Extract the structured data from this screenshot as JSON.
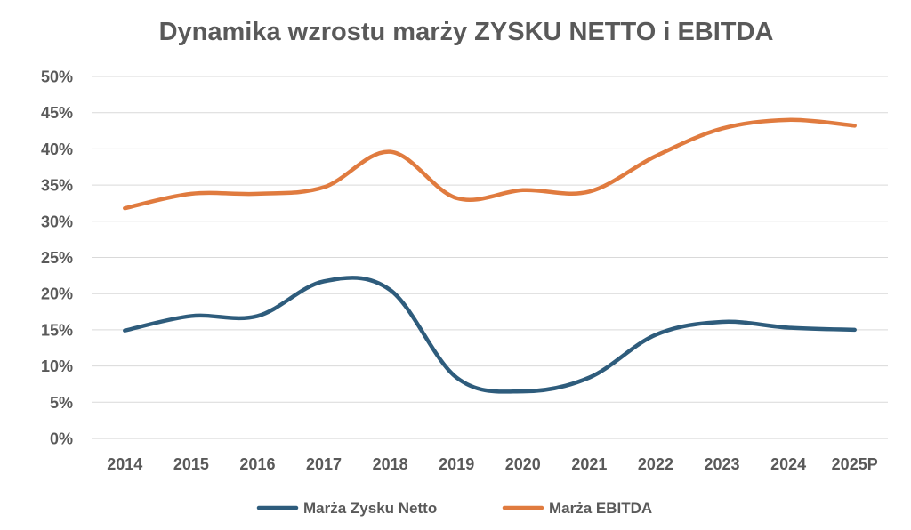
{
  "chart_data": {
    "type": "line",
    "title": "Dynamika wzrostu marży ZYSKU NETTO i EBITDA",
    "categories": [
      "2014",
      "2015",
      "2016",
      "2017",
      "2018",
      "2019",
      "2020",
      "2021",
      "2022",
      "2023",
      "2024",
      "2025P"
    ],
    "y_ticks": [
      "0%",
      "5%",
      "10%",
      "15%",
      "20%",
      "25%",
      "30%",
      "35%",
      "40%",
      "45%",
      "50%"
    ],
    "ylim": [
      0,
      50
    ],
    "y_unit": "%",
    "grid": true,
    "legend_position": "bottom",
    "series": [
      {
        "name": "Marża Zysku Netto",
        "color": "#2e5c7c",
        "values": [
          14.9,
          16.9,
          16.9,
          21.7,
          20.5,
          8.4,
          6.5,
          8.4,
          14.3,
          16.1,
          15.3,
          15.0
        ]
      },
      {
        "name": "Marża EBITDA",
        "color": "#e07b3f",
        "values": [
          31.8,
          33.8,
          33.8,
          34.7,
          39.6,
          33.2,
          34.3,
          34.1,
          39.0,
          42.8,
          44.0,
          43.2
        ]
      }
    ]
  }
}
